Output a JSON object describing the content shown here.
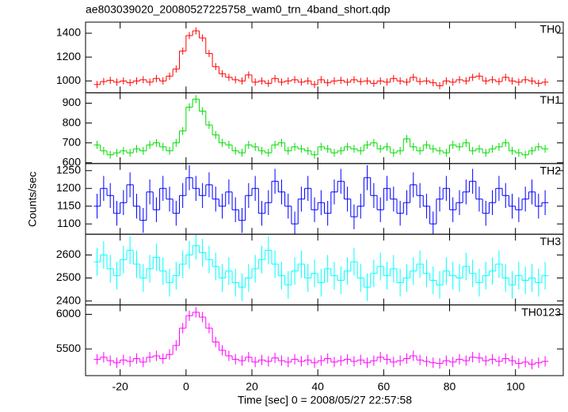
{
  "chart_data": {
    "type": "step",
    "title": "ae803039020_20080527225758_wam0_trn_4band_short.qdp",
    "xlabel": "Time [sec] 0 = 2008/05/27 22:57:58",
    "ylabel": "Counts/sec",
    "xlim": [
      -30.5,
      114.5
    ],
    "xticks": [
      -20,
      0,
      20,
      40,
      60,
      80,
      100
    ],
    "x": [
      -27,
      -25,
      -23,
      -21,
      -19,
      -17,
      -15,
      -13,
      -11,
      -9,
      -7,
      -5,
      -3,
      -1,
      1,
      3,
      5,
      7,
      9,
      11,
      13,
      15,
      17,
      19,
      21,
      23,
      25,
      27,
      29,
      31,
      33,
      35,
      37,
      39,
      41,
      43,
      45,
      47,
      49,
      51,
      53,
      55,
      57,
      59,
      61,
      63,
      65,
      67,
      69,
      71,
      73,
      75,
      77,
      79,
      81,
      83,
      85,
      87,
      89,
      91,
      93,
      95,
      97,
      99,
      101,
      103,
      105,
      107,
      109
    ],
    "series": [
      {
        "name": "TH0",
        "color": "#ff0000",
        "error": 30,
        "ylim": [
          900,
          1493
        ],
        "yticks": [
          1000,
          1200,
          1400
        ],
        "values": [
          970,
          995,
          1005,
          990,
          1000,
          985,
          1000,
          1010,
          990,
          1020,
          1000,
          1040,
          1100,
          1250,
          1380,
          1420,
          1360,
          1230,
          1120,
          1060,
          1030,
          1010,
          1000,
          1050,
          990,
          1000,
          980,
          1020,
          990,
          1000,
          1010,
          990,
          1000,
          970,
          1010,
          985,
          1000,
          1005,
          990,
          1010,
          995,
          1000,
          980,
          1000,
          990,
          1020,
          1000,
          990,
          1030,
          995,
          1000,
          985,
          960,
          1000,
          990,
          1010,
          1000,
          1030,
          1040,
          1000,
          1010,
          995,
          1030,
          1000,
          990,
          1010,
          1000,
          980,
          990
        ]
      },
      {
        "name": "TH1",
        "color": "#00dd00",
        "error": 20,
        "ylim": [
          596,
          952
        ],
        "yticks": [
          600,
          700,
          800,
          900
        ],
        "values": [
          690,
          660,
          640,
          650,
          660,
          650,
          670,
          660,
          690,
          700,
          680,
          660,
          700,
          760,
          880,
          920,
          860,
          790,
          740,
          700,
          690,
          660,
          650,
          690,
          680,
          660,
          650,
          690,
          700,
          660,
          680,
          670,
          660,
          640,
          680,
          670,
          650,
          660,
          680,
          670,
          660,
          690,
          700,
          670,
          680,
          650,
          660,
          720,
          680,
          660,
          690,
          670,
          660,
          650,
          690,
          680,
          700,
          660,
          670,
          650,
          670,
          680,
          700,
          660,
          650,
          640,
          660,
          680,
          670
        ]
      },
      {
        "name": "TH2",
        "color": "#0000ff",
        "error": 35,
        "ylim": [
          1071,
          1270
        ],
        "yticks": [
          1100,
          1150,
          1200,
          1250
        ],
        "values": [
          1150,
          1200,
          1180,
          1130,
          1160,
          1210,
          1150,
          1110,
          1190,
          1140,
          1200,
          1170,
          1130,
          1180,
          1230,
          1200,
          1180,
          1210,
          1170,
          1150,
          1190,
          1140,
          1110,
          1180,
          1200,
          1130,
          1160,
          1220,
          1190,
          1150,
          1100,
          1170,
          1200,
          1140,
          1160,
          1130,
          1190,
          1220,
          1170,
          1120,
          1150,
          1230,
          1180,
          1140,
          1200,
          1170,
          1130,
          1160,
          1210,
          1180,
          1150,
          1100,
          1170,
          1200,
          1140,
          1160,
          1190,
          1220,
          1170,
          1130,
          1160,
          1200,
          1180,
          1150,
          1140,
          1170,
          1190,
          1150,
          1160
        ]
      },
      {
        "name": "TH3",
        "color": "#00ffff",
        "error": 60,
        "ylim": [
          2383,
          2690
        ],
        "yticks": [
          2400,
          2500,
          2600
        ],
        "values": [
          2570,
          2600,
          2540,
          2510,
          2580,
          2620,
          2560,
          2500,
          2540,
          2590,
          2530,
          2480,
          2510,
          2560,
          2600,
          2640,
          2610,
          2580,
          2550,
          2500,
          2530,
          2480,
          2460,
          2500,
          2540,
          2580,
          2620,
          2560,
          2510,
          2470,
          2530,
          2560,
          2500,
          2520,
          2480,
          2540,
          2510,
          2490,
          2530,
          2570,
          2500,
          2460,
          2520,
          2550,
          2510,
          2540,
          2480,
          2500,
          2530,
          2560,
          2520,
          2490,
          2470,
          2530,
          2510,
          2500,
          2550,
          2520,
          2480,
          2510,
          2530,
          2560,
          2500,
          2470,
          2510,
          2490,
          2500,
          2480,
          2510
        ]
      },
      {
        "name": "TH0123",
        "color": "#ff00ff",
        "error": 75,
        "ylim": [
          5114,
          6136
        ],
        "yticks": [
          5500,
          6000
        ],
        "values": [
          5350,
          5380,
          5330,
          5300,
          5340,
          5320,
          5360,
          5310,
          5380,
          5400,
          5360,
          5420,
          5550,
          5800,
          5980,
          6030,
          5960,
          5800,
          5600,
          5480,
          5400,
          5350,
          5330,
          5380,
          5310,
          5340,
          5320,
          5370,
          5330,
          5310,
          5350,
          5320,
          5340,
          5300,
          5330,
          5360,
          5310,
          5330,
          5350,
          5320,
          5340,
          5300,
          5330,
          5380,
          5350,
          5310,
          5330,
          5360,
          5400,
          5340,
          5320,
          5300,
          5290,
          5330,
          5310,
          5350,
          5330,
          5380,
          5370,
          5330,
          5350,
          5320,
          5360,
          5330,
          5290,
          5310,
          5280,
          5300,
          5320
        ]
      }
    ]
  }
}
